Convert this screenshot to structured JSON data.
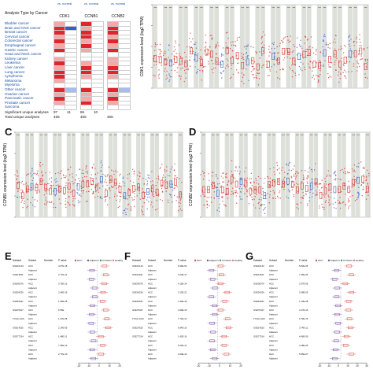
{
  "panels": {
    "C": "C",
    "D": "D",
    "E": "E",
    "F": "F",
    "G": "G"
  },
  "oncomine": {
    "row_header": "Analysis Type by Cancer",
    "genes": [
      "CDK1",
      "CCNB1",
      "CCNB2"
    ],
    "compare": "vs. normal",
    "cancers": [
      "Bladder cancer",
      "Brain and CNS cancer",
      "Breast cancer",
      "Cervical cancer",
      "Colorectal cancer",
      "Esophageal cancer",
      "Gastric cancer",
      "Head and Neck cancer",
      "Kidney cancer",
      "Leukemia",
      "Liver cancer",
      "Lung cancer",
      "Lymphoma",
      "Melanoma",
      "Myeloma",
      "Other cancer",
      "Ovarian cancer",
      "Pancreatic cancer",
      "Prostate cancer",
      "Sarcoma"
    ],
    "footer_sig": "Significant unique analyses",
    "footer_total": "Total unique analyses",
    "sig_values": [
      "97",
      "11",
      "86",
      "10"
    ],
    "total_values": [
      "455",
      "455",
      "455"
    ],
    "colors": {
      "up": "#e0262b",
      "down": "#2f5fd0",
      "light_up": "#f3a9aa",
      "light_down": "#a8bcee"
    }
  },
  "violin_b": {
    "ylabel": "CDK1 expression level (log2 TPM)"
  },
  "violin_c": {
    "ylabel": "CCNB1 expression level (log2 TPM)"
  },
  "violin_d": {
    "ylabel": "CCNB2 expression level (log2 TPM)"
  },
  "forest": {
    "col_dataset": "Dataset",
    "col_subset": "Subset",
    "col_number": "Number",
    "col_pvalue": "P value",
    "legend": [
      "HCC",
      "Adjacent",
      "Cirrhosis",
      "Healthy"
    ],
    "datasets": [
      "GSE10143",
      "GSE14811",
      "GSE36376",
      "GSE54236",
      "GSE64041",
      "GSE76427",
      "TCGA-LIHC",
      "GSE14520",
      "GSE77314"
    ],
    "subsets": [
      "HCC",
      "Adjacent",
      "Cirrhosis",
      "Healthy"
    ],
    "x_ticks": [
      "-20",
      "-10",
      "0",
      "10",
      "20"
    ],
    "x_ticks_g": [
      "-20",
      "-10",
      "0",
      "10",
      "20",
      "30"
    ],
    "e_pvalues": [
      "4.07E-18",
      "2.77E-11",
      "3.75E-13",
      "2.46E-19",
      "1.35E-25",
      "6.55E",
      "1.67E-08",
      "2.14E-09",
      "1.48E-11",
      "7.06E-12",
      "2.77E-10"
    ],
    "f_pvalues": [
      "6.99E-52",
      "5.23E-47",
      "4.15E-14",
      "3.13E-22",
      "1.40E-18",
      "4.69E-18",
      "7.72E-14",
      "6.84E-10",
      "1.42E-16",
      "5.23E-11",
      "2.00E-10"
    ],
    "g_pvalues": [
      "5.82E-05",
      "7.45E-05",
      "3.37E-06",
      "2.08E-05",
      "1.10E-08",
      "4.17E-16",
      "6.79E-15",
      "3.74E-11",
      "4.46E-09",
      "4.18E-05",
      "5.55E-07"
    ],
    "colors": {
      "hcc": "#d9534f",
      "adjacent": "#7a4fa0",
      "cirrhosis": "#3aa35a",
      "healthy": "#e377a8"
    }
  },
  "chart_data": [
    {
      "type": "bar",
      "title": "",
      "xlabel": "",
      "ylabel": "CDK1 expression level (log2 TPM)"
    },
    {
      "type": "bar",
      "title": "",
      "xlabel": "",
      "ylabel": "CCNB1 expression level (log2 TPM)"
    },
    {
      "type": "bar",
      "title": "",
      "xlabel": "",
      "ylabel": "CCNB2 expression level (log2 TPM)"
    }
  ]
}
